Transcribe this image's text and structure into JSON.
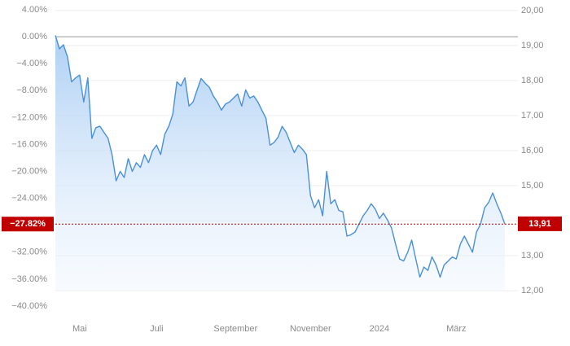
{
  "chart_data": {
    "type": "line",
    "series": [
      {
        "color": "#4a90d9",
        "values": [
          0.2,
          -1.8,
          -1.2,
          -3.0,
          -6.7,
          -6.1,
          -5.7,
          -9.7,
          -6.1,
          -15.1,
          -13.5,
          -13.3,
          -14.2,
          -15.1,
          -17.5,
          -21.4,
          -20.0,
          -20.9,
          -18.1,
          -20.0,
          -18.7,
          -19.4,
          -17.5,
          -18.7,
          -16.9,
          -16.1,
          -17.5,
          -14.5,
          -13.3,
          -11.5,
          -6.7,
          -7.3,
          -6.1,
          -10.3,
          -9.7,
          -7.9,
          -6.2,
          -6.9,
          -7.5,
          -8.8,
          -9.7,
          -10.9,
          -10.0,
          -9.7,
          -9.1,
          -8.5,
          -10.3,
          -7.9,
          -9.1,
          -8.8,
          -9.7,
          -10.9,
          -12.1,
          -16.1,
          -15.7,
          -14.9,
          -13.3,
          -14.2,
          -15.7,
          -17.2,
          -16.1,
          -16.7,
          -17.5,
          -23.6,
          -25.4,
          -24.2,
          -26.6,
          -20.0,
          -24.8,
          -24.2,
          -25.8,
          -26.0,
          -29.6,
          -29.4,
          -29.0,
          -27.8,
          -26.6,
          -25.8,
          -24.8,
          -25.6,
          -27.0,
          -26.2,
          -27.2,
          -28.4,
          -30.8,
          -33.0,
          -33.3,
          -32.0,
          -30.2,
          -33.0,
          -35.7,
          -34.2,
          -34.7,
          -32.7,
          -33.9,
          -35.7,
          -33.9,
          -33.3,
          -32.7,
          -33.0,
          -30.8,
          -29.6,
          -30.8,
          -32.0,
          -29.0,
          -27.8,
          -25.4,
          -24.6,
          -23.2,
          -24.8,
          -26.2,
          -27.82
        ]
      }
    ],
    "xlim": [
      0,
      112
    ],
    "xticks": [
      {
        "value": 6,
        "label": "Mai"
      },
      {
        "value": 25,
        "label": "Juli"
      },
      {
        "value": 44.5,
        "label": "September"
      },
      {
        "value": 63,
        "label": "November"
      },
      {
        "value": 80,
        "label": "2024"
      },
      {
        "value": 99,
        "label": "März"
      }
    ],
    "ylim": [
      -40,
      4
    ],
    "yticks": [
      {
        "value": 4,
        "label": "4.00%"
      },
      {
        "value": 0,
        "label": "0.00%"
      },
      {
        "value": -4,
        "label": "−4.00%"
      },
      {
        "value": -8,
        "label": "−8.00%"
      },
      {
        "value": -12,
        "label": "−12.00%"
      },
      {
        "value": -16,
        "label": "−16.00%"
      },
      {
        "value": -20,
        "label": "−20.00%"
      },
      {
        "value": -24,
        "label": "−24.00%"
      },
      {
        "value": -28,
        "label": "−28.00%"
      },
      {
        "value": -32,
        "label": "−32.00%"
      },
      {
        "value": -36,
        "label": "−36.00%"
      },
      {
        "value": -40,
        "label": "−40.00%"
      }
    ],
    "y2lim": [
      11.56,
      20.02
    ],
    "y2ticks": [
      {
        "value": 20,
        "label": "20,00"
      },
      {
        "value": 19,
        "label": "19,00"
      },
      {
        "value": 18,
        "label": "18,00"
      },
      {
        "value": 17,
        "label": "17,00"
      },
      {
        "value": 16,
        "label": "16,00"
      },
      {
        "value": 15,
        "label": "15,00"
      },
      {
        "value": 14,
        "label": "14,00"
      },
      {
        "value": 13,
        "label": "13,00"
      },
      {
        "value": 12,
        "label": "12,00"
      }
    ],
    "grid": true,
    "reference": {
      "value": -27.82,
      "label": "−27.82%",
      "y2_value": 13.91,
      "y2_label": "13,91",
      "color": "#c00000"
    }
  }
}
